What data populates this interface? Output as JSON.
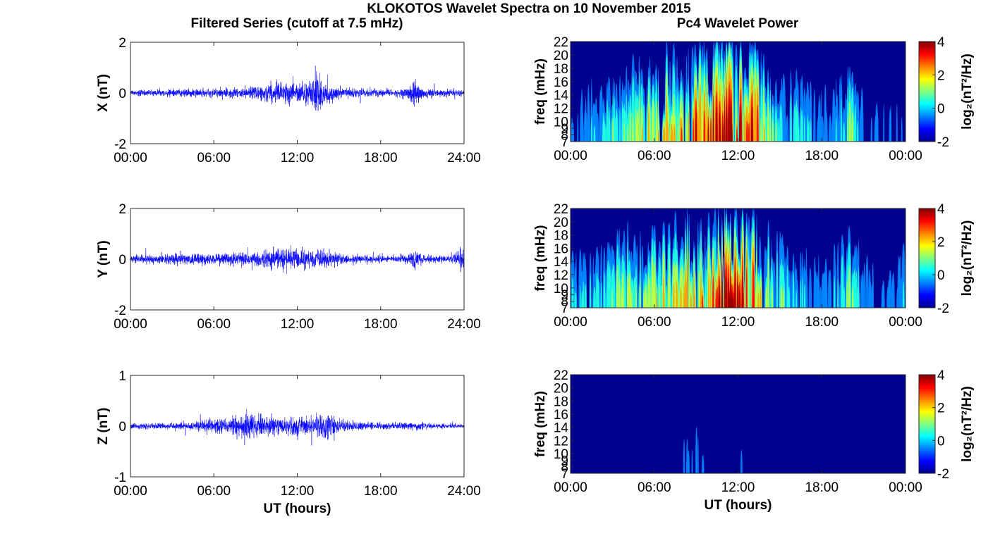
{
  "figure": {
    "title": "KLOKOTOS Wavelet Spectra on 10 November 2015",
    "left_title": "Filtered Series (cutoff at 7.5 mHz)",
    "right_title": "Pc4 Wavelet Power",
    "xlabel": "UT (hours)",
    "colors": {
      "series_line": "#0000ff",
      "frame": "#262626"
    }
  },
  "chart_data": [
    {
      "type": "line",
      "id": "series-x",
      "ylabel": "X (nT)",
      "ylim": [
        -2,
        2
      ],
      "yticks": [
        {
          "v": -2,
          "label": "-2"
        },
        {
          "v": 0,
          "label": "0"
        },
        {
          "v": 2,
          "label": "2"
        }
      ],
      "xlim": [
        0,
        24
      ],
      "xticks": [
        {
          "v": 0,
          "label": "00:00"
        },
        {
          "v": 6,
          "label": "06:00"
        },
        {
          "v": 12,
          "label": "12:00"
        },
        {
          "v": 18,
          "label": "18:00"
        },
        {
          "v": 24,
          "label": "24:00"
        }
      ],
      "xlabel": "",
      "envelope": {
        "x": [
          0,
          2,
          4,
          6,
          8,
          9,
          10,
          11,
          12,
          13,
          13.5,
          14,
          15,
          16,
          18,
          19,
          20,
          20.5,
          21,
          22,
          24
        ],
        "amp": [
          0.18,
          0.2,
          0.22,
          0.24,
          0.3,
          0.4,
          0.6,
          0.55,
          0.6,
          0.8,
          1.4,
          0.6,
          0.35,
          0.25,
          0.2,
          0.2,
          0.35,
          0.9,
          0.3,
          0.2,
          0.18
        ]
      }
    },
    {
      "type": "line",
      "id": "series-y",
      "ylabel": "Y (nT)",
      "ylim": [
        -2,
        2
      ],
      "yticks": [
        {
          "v": -2,
          "label": "-2"
        },
        {
          "v": 0,
          "label": "0"
        },
        {
          "v": 2,
          "label": "2"
        }
      ],
      "xlim": [
        0,
        24
      ],
      "xticks": [
        {
          "v": 0,
          "label": "00:00"
        },
        {
          "v": 6,
          "label": "06:00"
        },
        {
          "v": 12,
          "label": "12:00"
        },
        {
          "v": 18,
          "label": "18:00"
        },
        {
          "v": 24,
          "label": "24:00"
        }
      ],
      "xlabel": "",
      "envelope": {
        "x": [
          0,
          1,
          3,
          5,
          7,
          9,
          10,
          11,
          12,
          13,
          14,
          15,
          17,
          19,
          20,
          20.5,
          21,
          23,
          24
        ],
        "amp": [
          0.2,
          0.25,
          0.3,
          0.3,
          0.35,
          0.4,
          0.6,
          0.7,
          0.55,
          0.6,
          0.5,
          0.3,
          0.22,
          0.2,
          0.3,
          0.7,
          0.25,
          0.2,
          0.9
        ]
      }
    },
    {
      "type": "line",
      "id": "series-z",
      "ylabel": "Z (nT)",
      "ylim": [
        -1,
        1
      ],
      "yticks": [
        {
          "v": -1,
          "label": "-1"
        },
        {
          "v": 0,
          "label": "0"
        },
        {
          "v": 1,
          "label": "1"
        }
      ],
      "xlim": [
        0,
        24
      ],
      "xticks": [
        {
          "v": 0,
          "label": "00:00"
        },
        {
          "v": 6,
          "label": "06:00"
        },
        {
          "v": 12,
          "label": "12:00"
        },
        {
          "v": 18,
          "label": "18:00"
        },
        {
          "v": 24,
          "label": "24:00"
        }
      ],
      "xlabel": "UT (hours)",
      "envelope": {
        "x": [
          0,
          2,
          4,
          6,
          7,
          8,
          8.5,
          9,
          10,
          11,
          12,
          13,
          14,
          15,
          16,
          18,
          20,
          22,
          24
        ],
        "amp": [
          0.08,
          0.09,
          0.1,
          0.18,
          0.2,
          0.3,
          0.5,
          0.3,
          0.3,
          0.25,
          0.28,
          0.3,
          0.45,
          0.2,
          0.12,
          0.1,
          0.1,
          0.09,
          0.08
        ]
      }
    },
    {
      "type": "heatmap",
      "id": "wavelet-x",
      "ylabel": "freq (mHz)",
      "ylim": [
        7,
        22
      ],
      "yticks": [
        {
          "v": 7,
          "label": "7"
        },
        {
          "v": 8,
          "label": "8"
        },
        {
          "v": 9,
          "label": "9"
        },
        {
          "v": 10,
          "label": "10"
        },
        {
          "v": 12,
          "label": "12"
        },
        {
          "v": 14,
          "label": "14"
        },
        {
          "v": 16,
          "label": "16"
        },
        {
          "v": 18,
          "label": "18"
        },
        {
          "v": 20,
          "label": "20"
        },
        {
          "v": 22,
          "label": "22"
        }
      ],
      "xlim": [
        0,
        24
      ],
      "xticks": [
        {
          "v": 0,
          "label": "00:00"
        },
        {
          "v": 6,
          "label": "06:00"
        },
        {
          "v": 12,
          "label": "12:00"
        },
        {
          "v": 18,
          "label": "18:00"
        },
        {
          "v": 24,
          "label": "00:00"
        }
      ],
      "xlabel": "",
      "colorbar": {
        "clim": [
          -2,
          4
        ],
        "ticks": [
          {
            "v": -2,
            "label": "-2"
          },
          {
            "v": 0,
            "label": "0"
          },
          {
            "v": 2,
            "label": "2"
          },
          {
            "v": 4,
            "label": "4"
          }
        ],
        "label": "log₂(nT²/Hz)"
      },
      "activity": {
        "x": [
          0,
          2,
          3,
          4,
          5,
          6,
          7,
          8,
          9,
          10,
          10.5,
          11,
          12,
          12.5,
          13,
          14,
          15,
          16,
          17,
          18,
          19,
          19.8,
          20,
          21,
          22,
          24
        ],
        "level": [
          0.2,
          0.3,
          0.45,
          0.5,
          0.6,
          0.7,
          0.7,
          0.75,
          0.85,
          0.85,
          0.95,
          1.0,
          1.0,
          1.0,
          0.9,
          0.55,
          0.5,
          0.4,
          0.3,
          0.25,
          0.3,
          0.4,
          0.55,
          0.25,
          0.2,
          0.15
        ]
      }
    },
    {
      "type": "heatmap",
      "id": "wavelet-y",
      "ylabel": "freq (mHz)",
      "ylim": [
        7,
        22
      ],
      "yticks": [
        {
          "v": 7,
          "label": "7"
        },
        {
          "v": 8,
          "label": "8"
        },
        {
          "v": 9,
          "label": "9"
        },
        {
          "v": 10,
          "label": "10"
        },
        {
          "v": 12,
          "label": "12"
        },
        {
          "v": 14,
          "label": "14"
        },
        {
          "v": 16,
          "label": "16"
        },
        {
          "v": 18,
          "label": "18"
        },
        {
          "v": 20,
          "label": "20"
        },
        {
          "v": 22,
          "label": "22"
        }
      ],
      "xlim": [
        0,
        24
      ],
      "xticks": [
        {
          "v": 0,
          "label": "00:00"
        },
        {
          "v": 6,
          "label": "06:00"
        },
        {
          "v": 12,
          "label": "12:00"
        },
        {
          "v": 18,
          "label": "18:00"
        },
        {
          "v": 24,
          "label": "00:00"
        }
      ],
      "xlabel": "",
      "colorbar": {
        "clim": [
          -2,
          4
        ],
        "ticks": [
          {
            "v": -2,
            "label": "-2"
          },
          {
            "v": 0,
            "label": "0"
          },
          {
            "v": 2,
            "label": "2"
          },
          {
            "v": 4,
            "label": "4"
          }
        ],
        "label": "log₂(nT²/Hz)"
      },
      "activity": {
        "x": [
          0,
          2,
          3,
          4,
          5,
          6,
          7,
          8,
          9,
          10,
          11,
          11.5,
          12,
          13,
          14,
          15,
          16,
          17,
          18,
          19,
          19.8,
          20,
          21,
          22,
          24
        ],
        "level": [
          0.3,
          0.35,
          0.45,
          0.6,
          0.45,
          0.6,
          0.65,
          0.75,
          0.7,
          0.8,
          1.0,
          1.0,
          0.95,
          0.85,
          0.55,
          0.45,
          0.35,
          0.3,
          0.25,
          0.3,
          0.45,
          0.55,
          0.25,
          0.2,
          0.3
        ]
      }
    },
    {
      "type": "heatmap",
      "id": "wavelet-z",
      "ylabel": "freq (mHz)",
      "ylim": [
        7,
        22
      ],
      "yticks": [
        {
          "v": 7,
          "label": "7"
        },
        {
          "v": 8,
          "label": "8"
        },
        {
          "v": 9,
          "label": "9"
        },
        {
          "v": 10,
          "label": "10"
        },
        {
          "v": 12,
          "label": "12"
        },
        {
          "v": 14,
          "label": "14"
        },
        {
          "v": 16,
          "label": "16"
        },
        {
          "v": 18,
          "label": "18"
        },
        {
          "v": 20,
          "label": "20"
        },
        {
          "v": 22,
          "label": "22"
        }
      ],
      "xlim": [
        0,
        24
      ],
      "xticks": [
        {
          "v": 0,
          "label": "00:00"
        },
        {
          "v": 6,
          "label": "06:00"
        },
        {
          "v": 12,
          "label": "12:00"
        },
        {
          "v": 18,
          "label": "18:00"
        },
        {
          "v": 24,
          "label": "00:00"
        }
      ],
      "xlabel": "UT (hours)",
      "colorbar": {
        "clim": [
          -2,
          4
        ],
        "ticks": [
          {
            "v": -2,
            "label": "-2"
          },
          {
            "v": 0,
            "label": "0"
          },
          {
            "v": 2,
            "label": "2"
          },
          {
            "v": 4,
            "label": "4"
          }
        ],
        "label": "log₂(nT²/Hz)"
      },
      "activity": {
        "x": [
          0,
          4,
          6,
          7,
          8,
          9,
          10,
          11,
          12,
          13,
          14,
          16,
          18,
          20,
          21.5,
          22,
          24
        ],
        "level": [
          0.03,
          0.05,
          0.12,
          0.1,
          0.15,
          0.2,
          0.15,
          0.12,
          0.15,
          0.2,
          0.08,
          0.05,
          0.04,
          0.04,
          0.08,
          0.04,
          0.03
        ]
      }
    }
  ]
}
